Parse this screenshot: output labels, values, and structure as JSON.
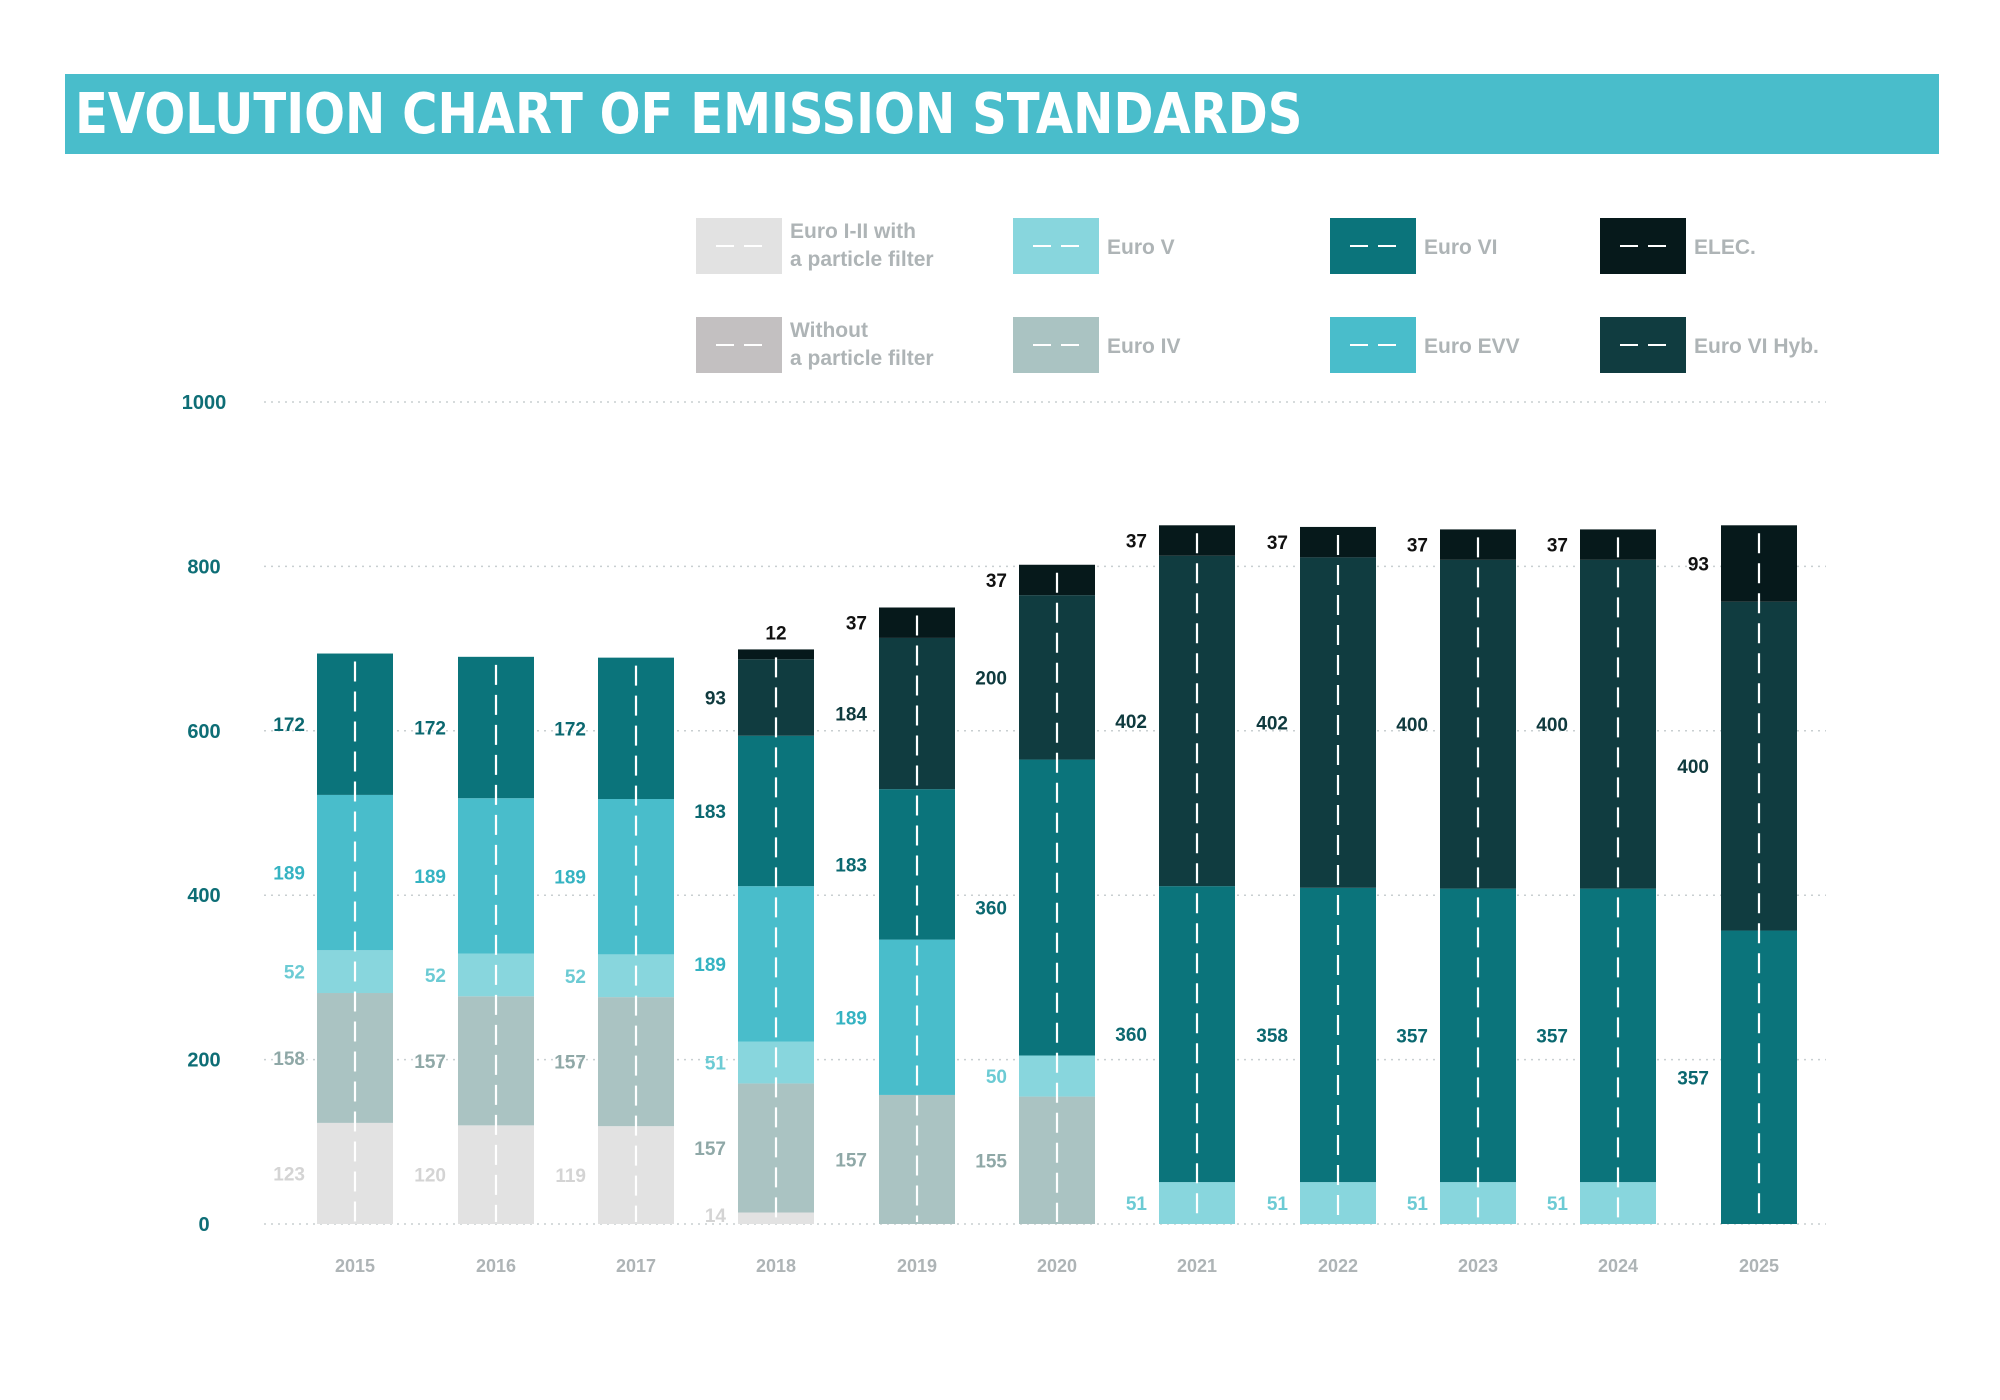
{
  "title": "EVOLUTION CHART OF EMISSION STANDARDS",
  "colors": {
    "title_bar": "#49bdcb",
    "axis_label": "#0e6e76",
    "grid": "#c9cfd1"
  },
  "legend": [
    {
      "key": "euro12",
      "lines": [
        "Euro I-II with",
        "a particle filter"
      ],
      "color": "#e2e2e2"
    },
    {
      "key": "euro5",
      "lines": [
        "Euro V"
      ],
      "color": "#88d6dd"
    },
    {
      "key": "euro6",
      "lines": [
        "Euro VI"
      ],
      "color": "#0b747b"
    },
    {
      "key": "elec",
      "lines": [
        "ELEC."
      ],
      "color": "#06191b"
    },
    {
      "key": "nofilter",
      "lines": [
        "Without",
        "a particle filter"
      ],
      "color": "#c3c0c1"
    },
    {
      "key": "euro4",
      "lines": [
        "Euro IV"
      ],
      "color": "#aac3c2"
    },
    {
      "key": "eev",
      "lines": [
        "Euro EVV"
      ],
      "color": "#49bdcb"
    },
    {
      "key": "euro6hyb",
      "lines": [
        "Euro VI Hyb."
      ],
      "color": "#103c40"
    }
  ],
  "chart_data": {
    "type": "bar",
    "stacked": true,
    "title": "EVOLUTION CHART OF EMISSION STANDARDS",
    "ylim": [
      0,
      1000
    ],
    "yticks": [
      0,
      200,
      400,
      600,
      800,
      1000
    ],
    "grid": true,
    "categories": [
      "2015",
      "2016",
      "2017",
      "2018",
      "2019",
      "2020",
      "2021",
      "2022",
      "2023",
      "2024",
      "2025"
    ],
    "series": [
      {
        "name": "Euro I-II with a particle filter",
        "color": "#e2e2e2",
        "label_color": "#d4d4d4",
        "values": [
          123,
          120,
          119,
          14,
          0,
          0,
          0,
          0,
          0,
          0,
          0
        ]
      },
      {
        "name": "Euro IV",
        "color": "#aac3c2",
        "label_color": "#8fa8a7",
        "values": [
          158,
          157,
          157,
          157,
          157,
          155,
          0,
          0,
          0,
          0,
          0
        ]
      },
      {
        "name": "Euro V",
        "color": "#88d6dd",
        "label_color": "#6ccbd4",
        "values": [
          52,
          52,
          52,
          51,
          0,
          50,
          51,
          51,
          51,
          51,
          0
        ]
      },
      {
        "name": "Euro EVV",
        "color": "#49bdcb",
        "label_color": "#35b3c2",
        "values": [
          189,
          189,
          189,
          189,
          189,
          0,
          0,
          0,
          0,
          0,
          0
        ]
      },
      {
        "name": "Euro VI",
        "color": "#0b747b",
        "label_color": "#0b6870",
        "values": [
          172,
          172,
          172,
          183,
          183,
          360,
          360,
          358,
          357,
          357,
          357
        ]
      },
      {
        "name": "Euro VI Hyb.",
        "color": "#103c40",
        "label_color": "#0f3a3e",
        "values": [
          0,
          0,
          0,
          93,
          184,
          200,
          402,
          402,
          400,
          400,
          400
        ]
      },
      {
        "name": "ELEC.",
        "color": "#06191b",
        "label_color": "#111111",
        "values": [
          0,
          0,
          0,
          12,
          37,
          37,
          37,
          37,
          37,
          37,
          93
        ]
      }
    ],
    "segment_labels": [
      [
        {
          "series": 0,
          "text": "123"
        },
        {
          "series": 1,
          "text": "158"
        },
        {
          "series": 2,
          "text": "52"
        },
        {
          "series": 3,
          "text": "189"
        },
        {
          "series": 4,
          "text": "172"
        }
      ],
      [
        {
          "series": 0,
          "text": "120"
        },
        {
          "series": 1,
          "text": "157"
        },
        {
          "series": 2,
          "text": "52"
        },
        {
          "series": 3,
          "text": "189"
        },
        {
          "series": 4,
          "text": "172"
        }
      ],
      [
        {
          "series": 0,
          "text": "119"
        },
        {
          "series": 1,
          "text": "157"
        },
        {
          "series": 2,
          "text": "52"
        },
        {
          "series": 3,
          "text": "189"
        },
        {
          "series": 4,
          "text": "172"
        }
      ],
      [
        {
          "series": 0,
          "text": "14"
        },
        {
          "series": 1,
          "text": "157"
        },
        {
          "series": 2,
          "text": "51"
        },
        {
          "series": 3,
          "text": "189"
        },
        {
          "series": 4,
          "text": "183"
        },
        {
          "series": 5,
          "text": "93"
        },
        {
          "series": 6,
          "text": "12",
          "position": "top"
        }
      ],
      [
        {
          "series": 1,
          "text": "157"
        },
        {
          "series": 3,
          "text": "189"
        },
        {
          "series": 4,
          "text": "183"
        },
        {
          "series": 5,
          "text": "184"
        },
        {
          "series": 6,
          "text": "37"
        }
      ],
      [
        {
          "series": 1,
          "text": "155"
        },
        {
          "series": 2,
          "text": "50"
        },
        {
          "series": 4,
          "text": "360"
        },
        {
          "series": 5,
          "text": "200"
        },
        {
          "series": 6,
          "text": "37"
        }
      ],
      [
        {
          "series": 2,
          "text": "51"
        },
        {
          "series": 4,
          "text": "360"
        },
        {
          "series": 5,
          "text": "402"
        },
        {
          "series": 6,
          "text": "37"
        }
      ],
      [
        {
          "series": 2,
          "text": "51"
        },
        {
          "series": 4,
          "text": "358"
        },
        {
          "series": 5,
          "text": "402"
        },
        {
          "series": 6,
          "text": "37"
        }
      ],
      [
        {
          "series": 2,
          "text": "51"
        },
        {
          "series": 4,
          "text": "357"
        },
        {
          "series": 5,
          "text": "400"
        },
        {
          "series": 6,
          "text": "37"
        }
      ],
      [
        {
          "series": 2,
          "text": "51"
        },
        {
          "series": 4,
          "text": "357"
        },
        {
          "series": 5,
          "text": "400"
        },
        {
          "series": 6,
          "text": "37"
        }
      ],
      [
        {
          "series": 4,
          "text": "357"
        },
        {
          "series": 5,
          "text": "400"
        },
        {
          "series": 6,
          "text": "93"
        }
      ]
    ]
  }
}
